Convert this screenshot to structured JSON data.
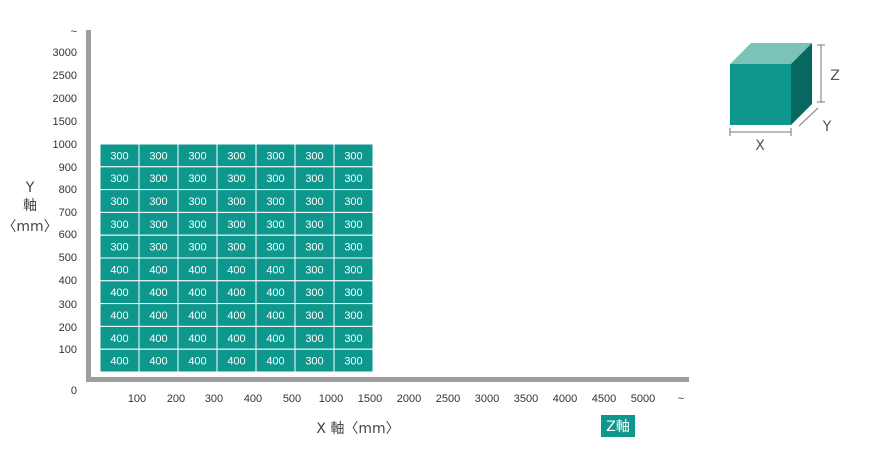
{
  "colors": {
    "cell": "#0e978c",
    "cell_border": "#ffffff",
    "axis": "#9e9e9e",
    "cube_front": "#0e978c",
    "cube_top": "#7bc3b7",
    "cube_side": "#06685f",
    "dimension_line": "#7a7a7a"
  },
  "chart_data": {
    "type": "table",
    "x_axis": {
      "label": "X 軸〈mm〉",
      "ticks": [
        "100",
        "200",
        "300",
        "400",
        "500",
        "1000",
        "1500",
        "2000",
        "2500",
        "3000",
        "3500",
        "4000",
        "4500",
        "5000",
        "~"
      ]
    },
    "y_axis": {
      "label_lines": [
        "Y",
        "軸",
        "〈mm〉"
      ],
      "ticks": [
        "100",
        "200",
        "300",
        "400",
        "500",
        "600",
        "700",
        "800",
        "900",
        "1000",
        "1500",
        "2000",
        "2500",
        "3000",
        "~"
      ]
    },
    "origin_label": "0",
    "z_axis_label": "Z軸",
    "grid_rows_top_to_bottom": [
      [
        300,
        300,
        300,
        300,
        300,
        300,
        300
      ],
      [
        300,
        300,
        300,
        300,
        300,
        300,
        300
      ],
      [
        300,
        300,
        300,
        300,
        300,
        300,
        300
      ],
      [
        300,
        300,
        300,
        300,
        300,
        300,
        300
      ],
      [
        300,
        300,
        300,
        300,
        300,
        300,
        300
      ],
      [
        400,
        400,
        400,
        400,
        400,
        300,
        300
      ],
      [
        400,
        400,
        400,
        400,
        400,
        300,
        300
      ],
      [
        400,
        400,
        400,
        400,
        400,
        300,
        300
      ],
      [
        400,
        400,
        400,
        400,
        400,
        300,
        300
      ],
      [
        400,
        400,
        400,
        400,
        400,
        300,
        300
      ]
    ],
    "grid_columns_x": [
      "100",
      "200",
      "300",
      "400",
      "500",
      "1000",
      "1500"
    ],
    "grid_rows_y_top_to_bottom": [
      "1000",
      "900",
      "800",
      "700",
      "600",
      "500",
      "400",
      "300",
      "200",
      "100"
    ]
  },
  "cube_legend": {
    "x": "X",
    "y": "Y",
    "z": "Z"
  }
}
